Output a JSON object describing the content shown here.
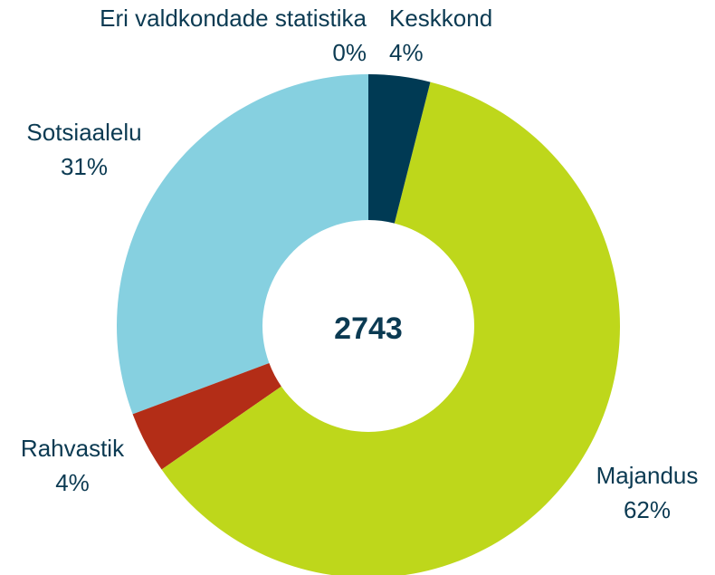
{
  "chart_data": {
    "type": "donut",
    "center_label": "2743",
    "categories": [
      "Keskkond",
      "Majandus",
      "Rahvastik",
      "Sotsiaalelu",
      "Eri valdkondade statistika"
    ],
    "values": [
      4,
      62,
      4,
      31,
      0
    ],
    "value_labels": [
      "4%",
      "62%",
      "4%",
      "31%",
      "0%"
    ],
    "colors": [
      "#003a54",
      "#bed71b",
      "#b32d17",
      "#86d0e0",
      "#7f7f7f"
    ]
  }
}
